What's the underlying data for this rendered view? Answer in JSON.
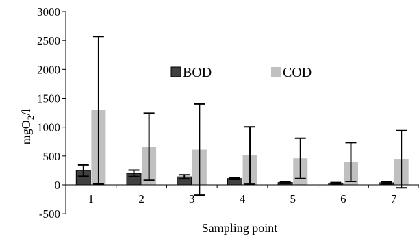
{
  "chart_data": {
    "type": "bar",
    "title": "",
    "xlabel": "Sampling point",
    "ylabel": "mgO2/l",
    "ylabel_parts": {
      "main": "mgO",
      "sub": "2",
      "tail": "/l"
    },
    "categories": [
      "1",
      "2",
      "3",
      "4",
      "5",
      "6",
      "7"
    ],
    "ylim": [
      -500,
      3000
    ],
    "yticks": [
      -500,
      0,
      500,
      1000,
      1500,
      2000,
      2500,
      3000
    ],
    "ytick_labels": [
      "-500",
      "0",
      "500",
      "1000",
      "1500",
      "2000",
      "2500",
      "3000"
    ],
    "grid": false,
    "legend_position": "top-center",
    "series": [
      {
        "name": "BOD",
        "color": "#404040",
        "values": [
          250,
          200,
          140,
          110,
          40,
          30,
          35
        ],
        "error_low": [
          150,
          145,
          105,
          95,
          25,
          20,
          20
        ],
        "error_high": [
          345,
          255,
          175,
          125,
          55,
          40,
          50
        ]
      },
      {
        "name": "COD",
        "color": "#c0c0c0",
        "values": [
          1300,
          660,
          610,
          510,
          460,
          400,
          450
        ],
        "error_low": [
          15,
          80,
          -180,
          10,
          110,
          60,
          -50
        ],
        "error_high": [
          2570,
          1240,
          1400,
          1005,
          810,
          730,
          940
        ]
      }
    ]
  }
}
